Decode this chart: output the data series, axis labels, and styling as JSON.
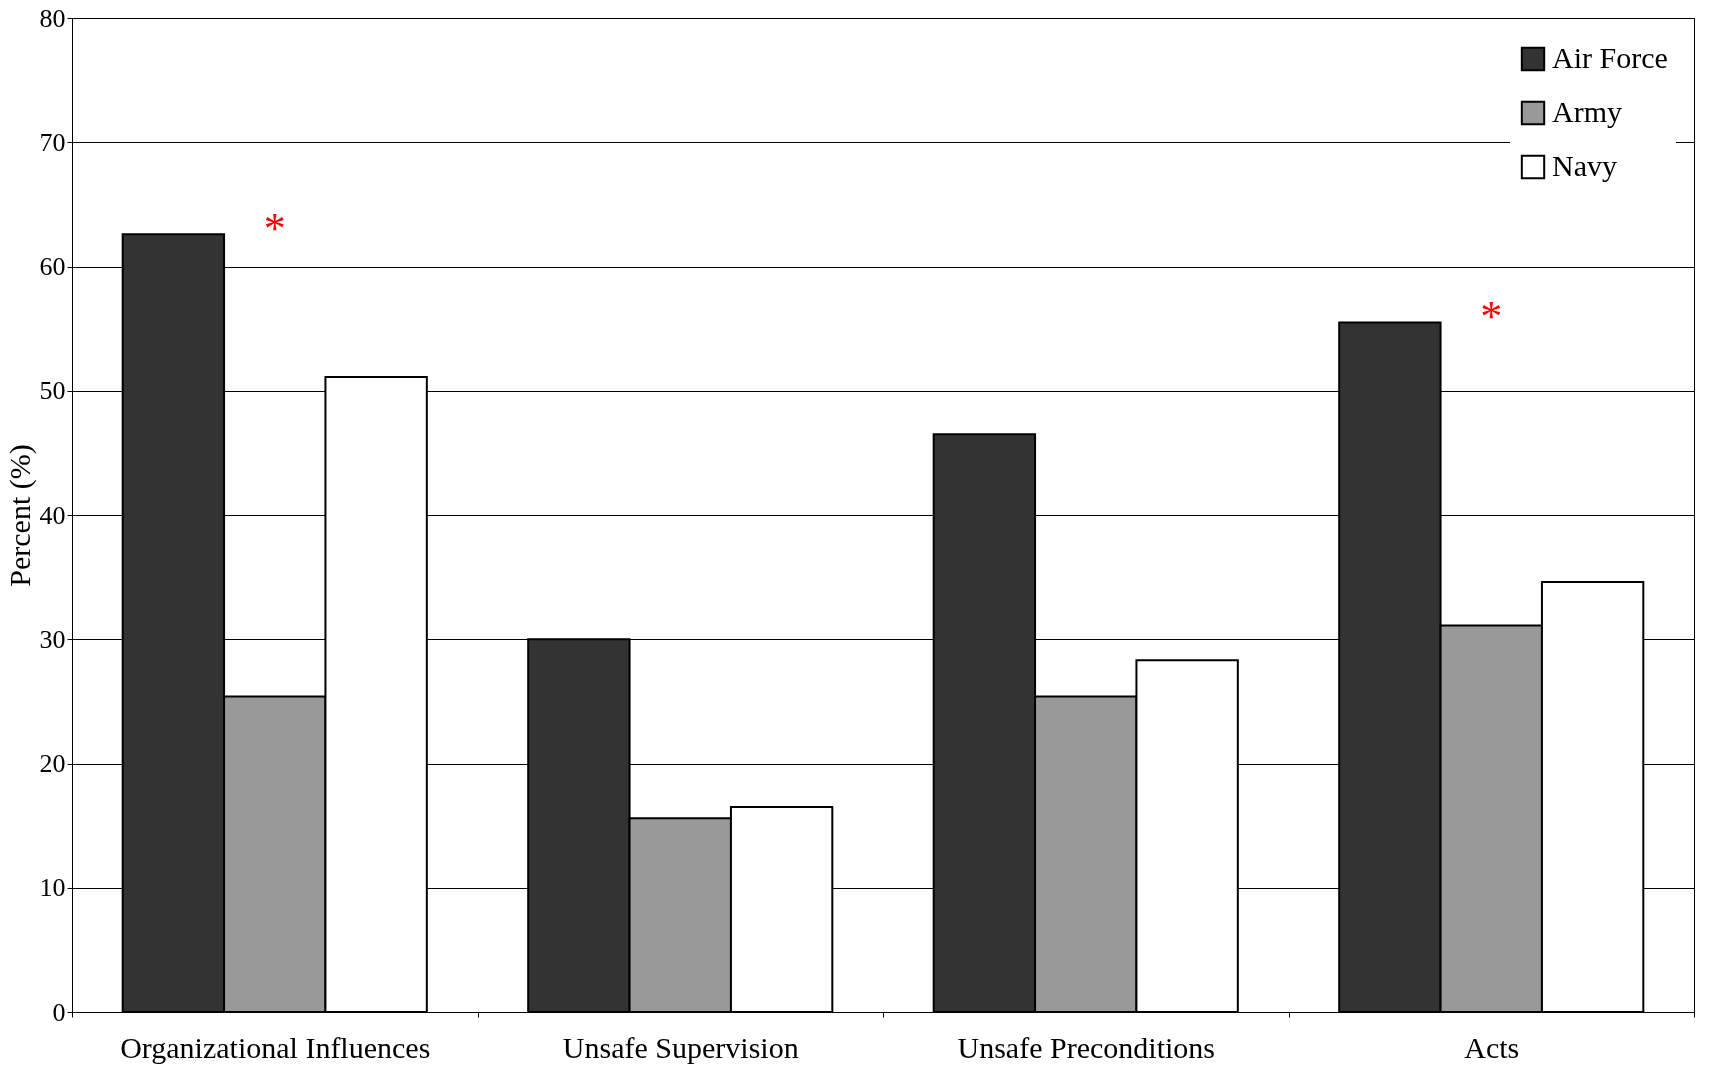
{
  "chart_data": {
    "type": "bar",
    "ylabel": "Percent (%)",
    "categories": [
      "Organizational Influences",
      "Unsafe Supervision",
      "Unsafe Preconditions",
      "Acts"
    ],
    "series": [
      {
        "name": "Air Force",
        "color": "#333333",
        "values": [
          62.6,
          30.0,
          46.5,
          55.5
        ]
      },
      {
        "name": "Army",
        "color": "#999999",
        "values": [
          25.4,
          15.6,
          25.4,
          31.1
        ]
      },
      {
        "name": "Navy",
        "color": "#ffffff",
        "values": [
          51.1,
          16.5,
          28.3,
          34.6
        ]
      }
    ],
    "ylim": [
      0,
      80
    ],
    "yticks": [
      0,
      10,
      20,
      30,
      40,
      50,
      60,
      70,
      80
    ],
    "grid": "y",
    "legend": "top right",
    "annotations": [
      "*",
      "*"
    ]
  }
}
